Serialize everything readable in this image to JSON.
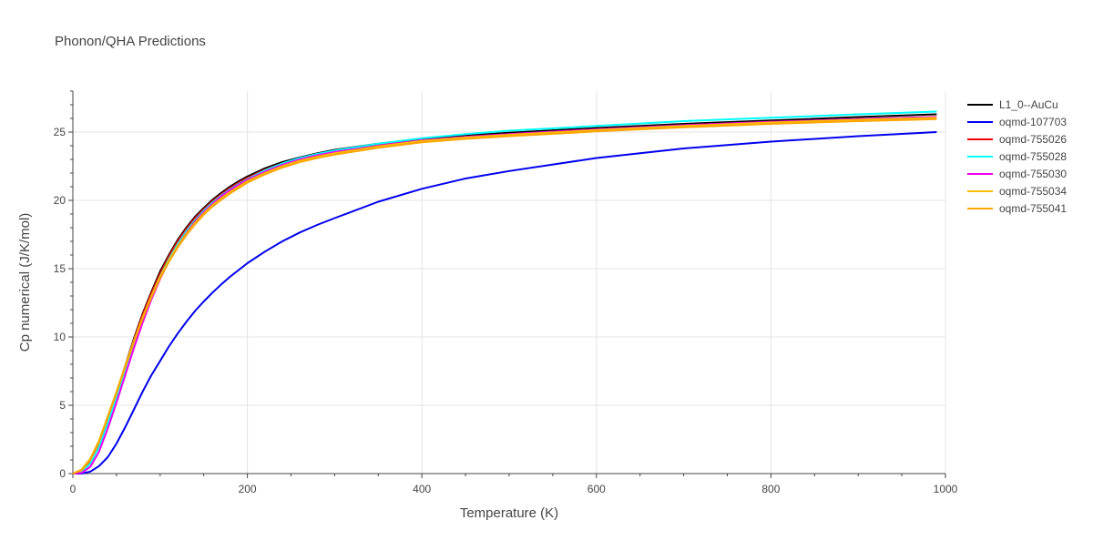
{
  "chart_data": {
    "type": "line",
    "title": "Phonon/QHA Predictions",
    "xlabel": "Temperature (K)",
    "ylabel": "Cp numerical (J/K/mol)",
    "xlim": [
      0,
      1000
    ],
    "ylim": [
      0,
      28
    ],
    "xticks": [
      0,
      200,
      400,
      600,
      800,
      1000
    ],
    "yticks": [
      0,
      5,
      10,
      15,
      20,
      25
    ],
    "grid": true,
    "legend_position": "top-right",
    "x": [
      0,
      10,
      20,
      30,
      40,
      50,
      60,
      70,
      80,
      90,
      100,
      110,
      120,
      130,
      140,
      150,
      160,
      170,
      180,
      190,
      200,
      220,
      240,
      260,
      280,
      300,
      350,
      400,
      450,
      500,
      600,
      700,
      800,
      900,
      990
    ],
    "series": [
      {
        "name": "L1_0--AuCu",
        "color": "#000000",
        "values": [
          0,
          0.15,
          0.9,
          2.2,
          4.0,
          5.9,
          7.9,
          9.9,
          11.7,
          13.3,
          14.8,
          16.0,
          17.1,
          18.0,
          18.8,
          19.45,
          20.05,
          20.55,
          21.0,
          21.4,
          21.75,
          22.35,
          22.8,
          23.15,
          23.45,
          23.7,
          24.15,
          24.5,
          24.75,
          24.95,
          25.3,
          25.6,
          25.85,
          26.1,
          26.3
        ]
      },
      {
        "name": "oqmd-107703",
        "color": "#0000ee",
        "values": [
          0,
          0,
          0.15,
          0.55,
          1.2,
          2.2,
          3.4,
          4.7,
          6.0,
          7.2,
          8.25,
          9.3,
          10.25,
          11.1,
          11.9,
          12.6,
          13.25,
          13.85,
          14.4,
          14.9,
          15.4,
          16.25,
          17.0,
          17.65,
          18.2,
          18.7,
          19.9,
          20.85,
          21.6,
          22.15,
          23.1,
          23.8,
          24.3,
          24.7,
          25.0
        ]
      },
      {
        "name": "oqmd-755026",
        "color": "#ee0000",
        "values": [
          0,
          0.15,
          0.85,
          2.1,
          3.9,
          5.8,
          7.8,
          9.8,
          11.6,
          13.2,
          14.65,
          15.9,
          17.0,
          17.9,
          18.7,
          19.35,
          19.95,
          20.45,
          20.9,
          21.3,
          21.65,
          22.25,
          22.7,
          23.05,
          23.35,
          23.6,
          24.05,
          24.4,
          24.65,
          24.85,
          25.2,
          25.5,
          25.75,
          25.95,
          26.1
        ]
      },
      {
        "name": "oqmd-755028",
        "color": "#00ffff",
        "values": [
          0,
          0.1,
          0.75,
          1.95,
          3.7,
          5.6,
          7.6,
          9.55,
          11.35,
          13.0,
          14.45,
          15.7,
          16.8,
          17.75,
          18.55,
          19.25,
          19.85,
          20.35,
          20.8,
          21.2,
          21.55,
          22.2,
          22.7,
          23.1,
          23.4,
          23.65,
          24.15,
          24.55,
          24.85,
          25.1,
          25.45,
          25.8,
          26.05,
          26.3,
          26.5
        ]
      },
      {
        "name": "oqmd-755030",
        "color": "#ee00ee",
        "values": [
          0,
          0.05,
          0.5,
          1.6,
          3.3,
          5.2,
          7.2,
          9.2,
          11.05,
          12.75,
          14.25,
          15.55,
          16.65,
          17.6,
          18.45,
          19.15,
          19.75,
          20.3,
          20.75,
          21.15,
          21.5,
          22.1,
          22.6,
          23.0,
          23.3,
          23.55,
          24.0,
          24.4,
          24.65,
          24.85,
          25.2,
          25.5,
          25.75,
          25.95,
          26.1
        ]
      },
      {
        "name": "oqmd-755034",
        "color": "#fbbc05",
        "values": [
          0,
          0.3,
          1.1,
          2.4,
          4.2,
          6.0,
          7.9,
          9.75,
          11.45,
          13.0,
          14.4,
          15.6,
          16.65,
          17.55,
          18.35,
          19.05,
          19.65,
          20.15,
          20.6,
          21.0,
          21.4,
          22.0,
          22.5,
          22.9,
          23.2,
          23.45,
          23.95,
          24.35,
          24.6,
          24.8,
          25.15,
          25.45,
          25.7,
          25.9,
          26.05
        ]
      },
      {
        "name": "oqmd-755041",
        "color": "#ffa500",
        "values": [
          0,
          0.25,
          1.0,
          2.3,
          4.1,
          5.9,
          7.8,
          9.65,
          11.35,
          12.9,
          14.3,
          15.5,
          16.55,
          17.45,
          18.25,
          18.95,
          19.55,
          20.05,
          20.5,
          20.9,
          21.3,
          21.9,
          22.4,
          22.8,
          23.1,
          23.35,
          23.85,
          24.25,
          24.5,
          24.7,
          25.05,
          25.35,
          25.6,
          25.8,
          25.95
        ]
      }
    ]
  }
}
